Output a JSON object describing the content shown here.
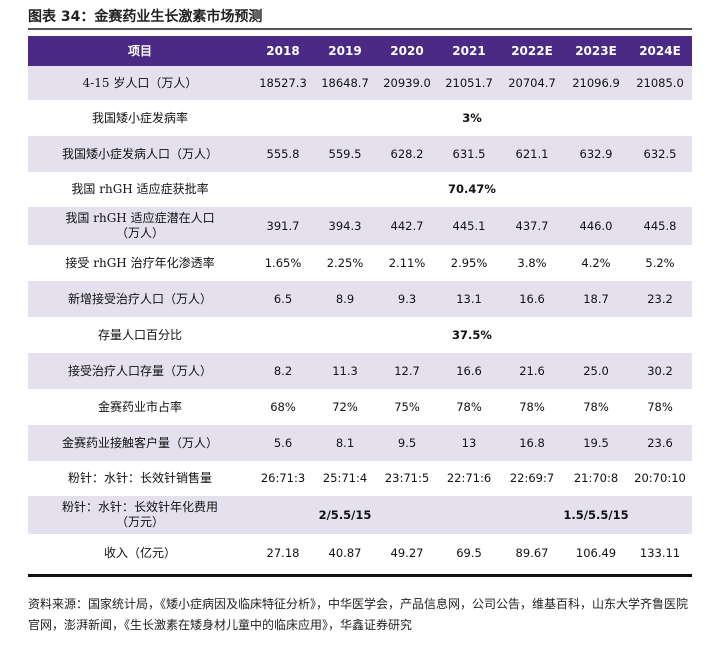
{
  "title": "图表 34：金赛药业生长激素市场预测",
  "header": {
    "item": "项目",
    "years": [
      "2018",
      "2019",
      "2020",
      "2021",
      "2022E",
      "2023E",
      "2024E"
    ]
  },
  "rows": [
    {
      "label": "4-15 岁人口（万人）",
      "values": [
        "18527.3",
        "18648.7",
        "20939.0",
        "21051.7",
        "20704.7",
        "21096.9",
        "21085.0"
      ]
    },
    {
      "label": "我国矮小症发病率",
      "merged": "3%"
    },
    {
      "label": "我国矮小症发病人口（万人）",
      "values": [
        "555.8",
        "559.5",
        "628.2",
        "631.5",
        "621.1",
        "632.9",
        "632.5"
      ]
    },
    {
      "label": "我国 rhGH 适应症获批率",
      "merged": "70.47%"
    },
    {
      "label": "我国 rhGH 适应症潜在人口（万人）",
      "label_line1": "我国 rhGH 适应症潜在人口",
      "label_line2": "（万人）",
      "values": [
        "391.7",
        "394.3",
        "442.7",
        "445.1",
        "437.7",
        "446.0",
        "445.8"
      ]
    },
    {
      "label": "接受 rhGH 治疗年化渗透率",
      "values": [
        "1.65%",
        "2.25%",
        "2.11%",
        "2.95%",
        "3.8%",
        "4.2%",
        "5.2%"
      ]
    },
    {
      "label": "新增接受治疗人口（万人）",
      "values": [
        "6.5",
        "8.9",
        "9.3",
        "13.1",
        "16.6",
        "18.7",
        "23.2"
      ]
    },
    {
      "label": "存量人口百分比",
      "merged": "37.5%"
    },
    {
      "label": "接受治疗人口存量（万人）",
      "values": [
        "8.2",
        "11.3",
        "12.7",
        "16.6",
        "21.6",
        "25.0",
        "30.2"
      ]
    },
    {
      "label": "金赛药业市占率",
      "values": [
        "68%",
        "72%",
        "75%",
        "78%",
        "78%",
        "78%",
        "78%"
      ]
    },
    {
      "label": "金赛药业接触客户量（万人）",
      "values": [
        "5.6",
        "8.1",
        "9.5",
        "13",
        "16.8",
        "19.5",
        "23.6"
      ]
    },
    {
      "label": "粉针：水针：长效针销售量",
      "values": [
        "26:71:3",
        "25:71:4",
        "23:71:5",
        "22:71:6",
        "22:69:7",
        "21:70:8",
        "20:70:10"
      ]
    },
    {
      "label_line1": "粉针：水针：长效针年化费用",
      "label_line2": "（万元）",
      "group1": "2/5.5/15",
      "group2": "1.5/5.5/15"
    },
    {
      "label": "收入（亿元）",
      "values": [
        "27.18",
        "40.87",
        "49.27",
        "69.5",
        "89.67",
        "106.49",
        "133.11"
      ]
    }
  ],
  "source": "资料来源：国家统计局，《矮小症病因及临床特征分析》，中华医学会，产品信息网，公司公告，维基百科，山东大学齐鲁医院官网，澎湃新闻，《生长激素在矮身材儿童中的临床应用》，华鑫证券研究"
}
